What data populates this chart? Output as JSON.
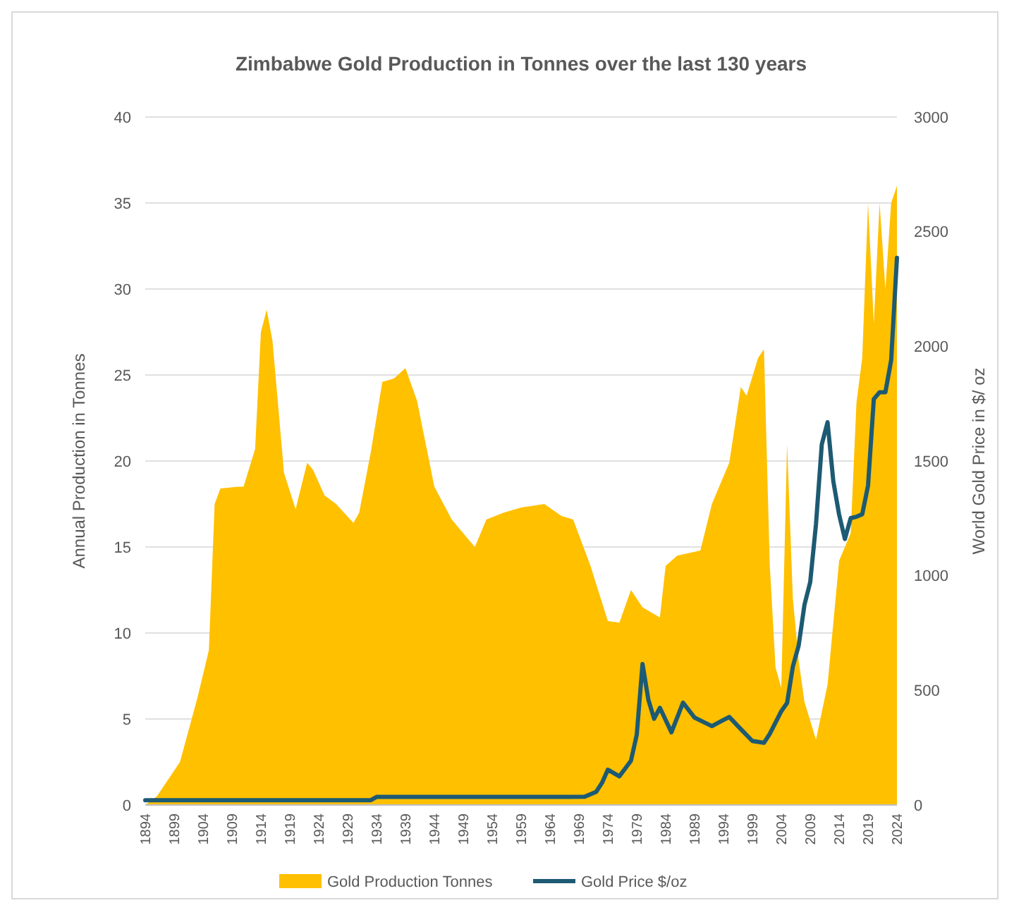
{
  "chart_data": {
    "type": "area",
    "title": "Zimbabwe Gold Production in Tonnes over the last 130 years",
    "ylabel": "Annual Production in Tonnes",
    "y2label": "World Gold Price in $/ oz",
    "xlim": [
      1894,
      2024
    ],
    "xticks": [
      1894,
      1899,
      1904,
      1909,
      1914,
      1919,
      1924,
      1929,
      1934,
      1939,
      1944,
      1949,
      1954,
      1959,
      1964,
      1969,
      1974,
      1979,
      1984,
      1989,
      1994,
      1999,
      2004,
      2009,
      2014,
      2019,
      2024
    ],
    "ylim": [
      0,
      40
    ],
    "yticks": [
      0,
      5,
      10,
      15,
      20,
      25,
      30,
      35,
      40
    ],
    "y2lim": [
      0,
      3000
    ],
    "y2ticks": [
      0,
      500,
      1000,
      1500,
      2000,
      2500,
      3000
    ],
    "grid": "y",
    "legend": "bottom",
    "series": [
      {
        "name": "Gold Production Tonnes",
        "color": "#ffc000",
        "x": [
          1894,
          1896,
          1899,
          1900,
          1903,
          1905,
          1906,
          1907,
          1910,
          1911,
          1913,
          1914,
          1915,
          1916,
          1918,
          1920,
          1922,
          1923,
          1925,
          1927,
          1930,
          1931,
          1933,
          1935,
          1937,
          1939,
          1941,
          1944,
          1947,
          1949,
          1951,
          1953,
          1956,
          1959,
          1963,
          1966,
          1968,
          1971,
          1974,
          1976,
          1978,
          1980,
          1983,
          1984,
          1986,
          1990,
          1992,
          1995,
          1997,
          1998,
          2000,
          2001,
          2002,
          2003,
          2004,
          2005,
          2006,
          2007,
          2008,
          2010,
          2012,
          2014,
          2016,
          2017,
          2018,
          2019,
          2020,
          2021,
          2022,
          2023,
          2024
        ],
        "values": [
          0,
          0.5,
          2,
          2.5,
          6.2,
          9,
          17.5,
          18.4,
          18.5,
          18.5,
          20.7,
          27.5,
          28.8,
          27,
          19.3,
          17.2,
          19.9,
          19.5,
          18,
          17.5,
          16.4,
          17,
          20.5,
          24.6,
          24.8,
          25.4,
          23.5,
          18.5,
          16.6,
          15.8,
          15,
          16.6,
          17,
          17.3,
          17.5,
          16.8,
          16.6,
          13.9,
          10.7,
          10.6,
          12.5,
          11.5,
          10.9,
          13.9,
          14.5,
          14.8,
          17.5,
          19.9,
          24.3,
          23.8,
          26,
          26.5,
          14,
          8,
          6.8,
          21,
          12,
          8.4,
          6,
          3.8,
          7,
          14.2,
          15.8,
          23.4,
          26,
          35,
          28,
          35,
          30,
          35,
          36
        ]
      },
      {
        "name": "Gold Price $/oz",
        "type": "line",
        "axis": "y2",
        "color": "#1d5a73",
        "x": [
          1894,
          1933,
          1934,
          1967,
          1970,
          1972,
          1973,
          1974,
          1976,
          1978,
          1979,
          1980,
          1981,
          1982,
          1983,
          1985,
          1987,
          1989,
          1992,
          1995,
          1997,
          1999,
          2001,
          2002,
          2004,
          2005,
          2006,
          2007,
          2008,
          2009,
          2010,
          2011,
          2012,
          2013,
          2014,
          2015,
          2016,
          2017,
          2018,
          2019,
          2020,
          2021,
          2022,
          2023,
          2024
        ],
        "values": [
          21,
          21,
          35,
          35,
          36,
          58,
          97,
          154,
          125,
          193,
          306,
          615,
          460,
          376,
          424,
          317,
          446,
          381,
          344,
          384,
          331,
          279,
          271,
          310,
          409,
          445,
          604,
          695,
          872,
          972,
          1225,
          1572,
          1669,
          1411,
          1266,
          1160,
          1251,
          1257,
          1268,
          1393,
          1770,
          1800,
          1800,
          1940,
          2386
        ]
      }
    ]
  }
}
